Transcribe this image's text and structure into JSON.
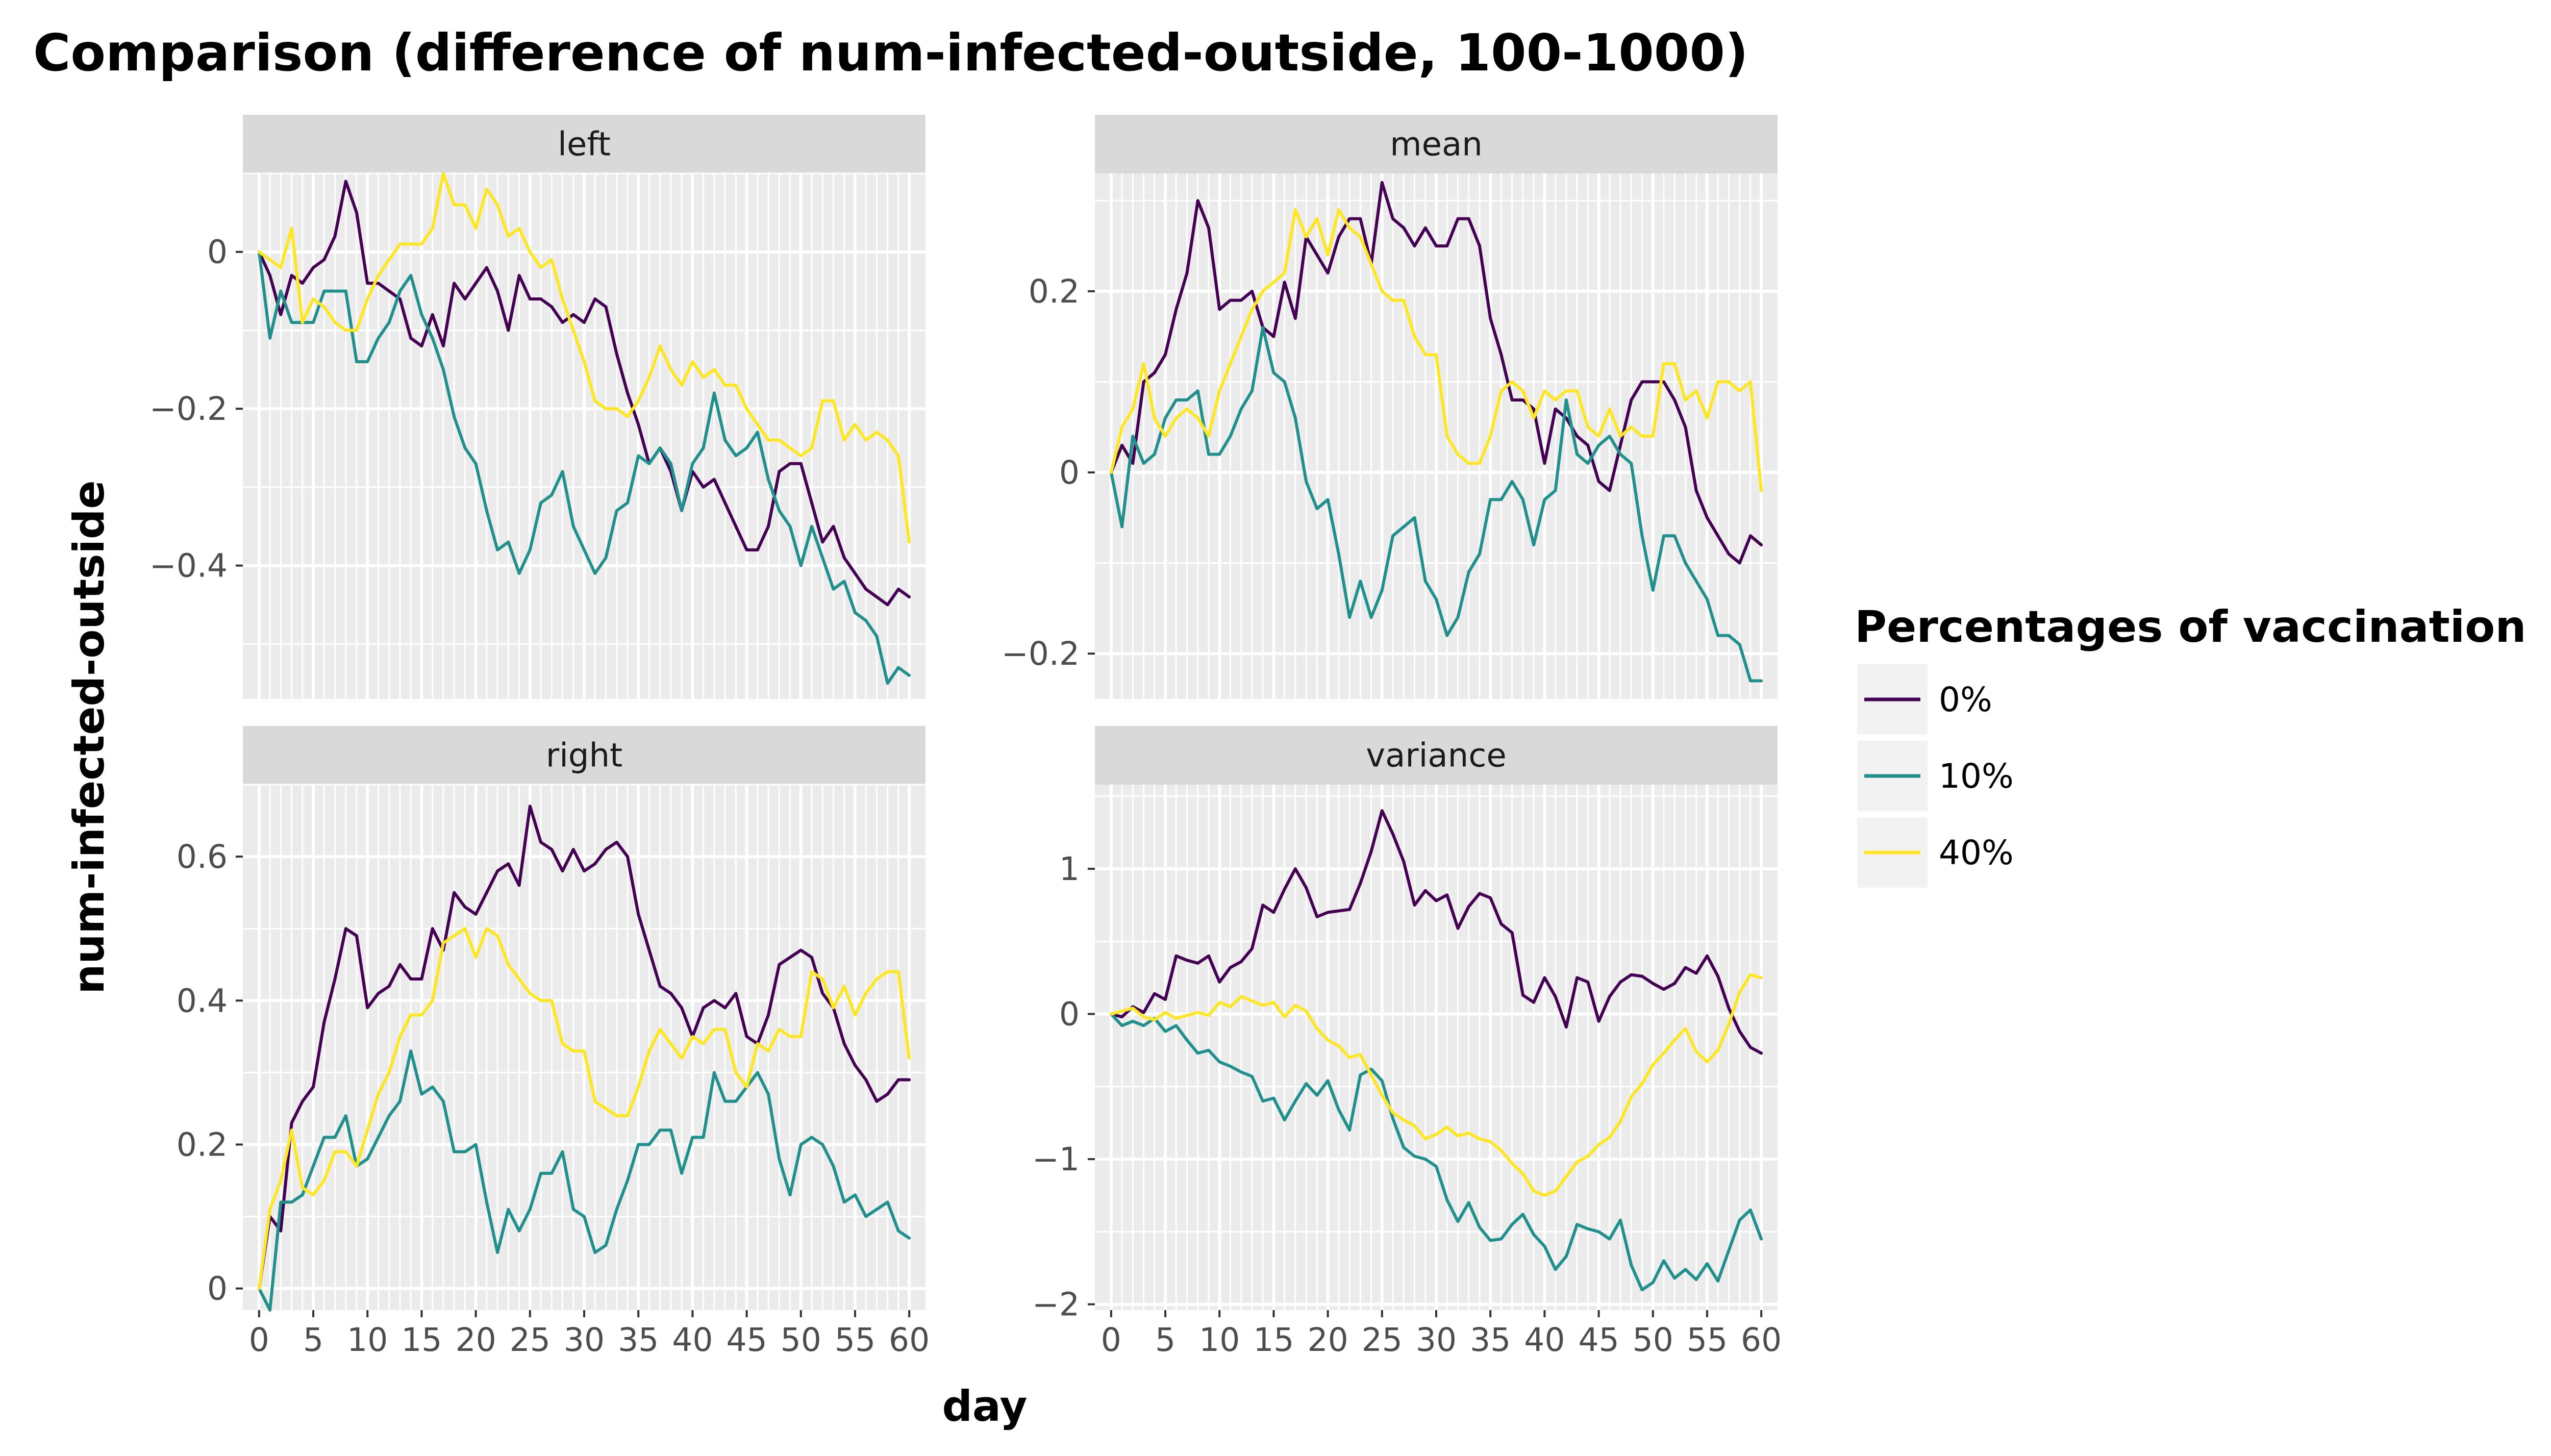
{
  "chart_data": {
    "type": "line",
    "title": "Comparison (difference of num-infected-outside, 100-1000)",
    "xlabel": "day",
    "ylabel": "num-infected-outside",
    "legend": {
      "title": "Percentages of vaccination",
      "placement": "right",
      "entries": [
        {
          "label": "0%",
          "color": "#440154"
        },
        {
          "label": "10%",
          "color": "#21908C"
        },
        {
          "label": "40%",
          "color": "#FDE725"
        }
      ]
    },
    "x_ticks": [
      "0",
      "5",
      "10",
      "15",
      "20",
      "25",
      "30",
      "35",
      "40",
      "45",
      "50",
      "55",
      "60"
    ],
    "xlim": [
      -1.5,
      61.5
    ],
    "grid": true,
    "series_names": [
      "0%",
      "10%",
      "40%"
    ],
    "panels": [
      {
        "strip": "left",
        "ylim": [
          -0.57,
          0.1
        ],
        "y_ticks": [
          {
            "value": 0,
            "label": "0"
          },
          {
            "value": -0.2,
            "label": "−0.2"
          },
          {
            "value": -0.4,
            "label": "−0.4"
          }
        ],
        "series": [
          {
            "values": [
              0,
              -0.03,
              -0.08,
              -0.03,
              -0.04,
              -0.02,
              -0.01,
              0.02,
              0.09,
              0.05,
              -0.04,
              -0.04,
              -0.05,
              -0.06,
              -0.11,
              -0.12,
              -0.08,
              -0.12,
              -0.04,
              -0.06,
              -0.04,
              -0.02,
              -0.05,
              -0.1,
              -0.03,
              -0.06,
              -0.06,
              -0.07,
              -0.09,
              -0.08,
              -0.09,
              -0.06,
              -0.07,
              -0.13,
              -0.18,
              -0.22,
              -0.27,
              -0.25,
              -0.28,
              -0.33,
              -0.28,
              -0.3,
              -0.29,
              -0.32,
              -0.35,
              -0.38,
              -0.38,
              -0.35,
              -0.28,
              -0.27,
              -0.27,
              -0.32,
              -0.37,
              -0.35,
              -0.39,
              -0.41,
              -0.43,
              -0.44,
              -0.45,
              -0.43,
              -0.44
            ]
          },
          {
            "values": [
              0,
              -0.11,
              -0.05,
              -0.09,
              -0.09,
              -0.09,
              -0.05,
              -0.05,
              -0.05,
              -0.14,
              -0.14,
              -0.11,
              -0.09,
              -0.05,
              -0.03,
              -0.08,
              -0.11,
              -0.15,
              -0.21,
              -0.25,
              -0.27,
              -0.33,
              -0.38,
              -0.37,
              -0.41,
              -0.38,
              -0.32,
              -0.31,
              -0.28,
              -0.35,
              -0.38,
              -0.41,
              -0.39,
              -0.33,
              -0.32,
              -0.26,
              -0.27,
              -0.25,
              -0.27,
              -0.33,
              -0.27,
              -0.25,
              -0.18,
              -0.24,
              -0.26,
              -0.25,
              -0.23,
              -0.29,
              -0.33,
              -0.35,
              -0.4,
              -0.35,
              -0.39,
              -0.43,
              -0.42,
              -0.46,
              -0.47,
              -0.49,
              -0.55,
              -0.53,
              -0.54
            ]
          },
          {
            "values": [
              0,
              -0.01,
              -0.02,
              0.03,
              -0.09,
              -0.06,
              -0.07,
              -0.09,
              -0.1,
              -0.1,
              -0.06,
              -0.03,
              -0.01,
              0.01,
              0.01,
              0.01,
              0.03,
              0.1,
              0.06,
              0.06,
              0.03,
              0.08,
              0.06,
              0.02,
              0.03,
              0,
              -0.02,
              -0.01,
              -0.06,
              -0.1,
              -0.14,
              -0.19,
              -0.2,
              -0.2,
              -0.21,
              -0.19,
              -0.16,
              -0.12,
              -0.15,
              -0.17,
              -0.14,
              -0.16,
              -0.15,
              -0.17,
              -0.17,
              -0.2,
              -0.22,
              -0.24,
              -0.24,
              -0.25,
              -0.26,
              -0.25,
              -0.19,
              -0.19,
              -0.24,
              -0.22,
              -0.24,
              -0.23,
              -0.24,
              -0.26,
              -0.37
            ]
          }
        ]
      },
      {
        "strip": "mean",
        "ylim": [
          -0.25,
          0.33
        ],
        "y_ticks": [
          {
            "value": 0.2,
            "label": "0.2"
          },
          {
            "value": 0,
            "label": "0"
          },
          {
            "value": -0.2,
            "label": "−0.2"
          }
        ],
        "series": [
          {
            "values": [
              0,
              0.03,
              0.01,
              0.1,
              0.11,
              0.13,
              0.18,
              0.22,
              0.3,
              0.27,
              0.18,
              0.19,
              0.19,
              0.2,
              0.16,
              0.15,
              0.21,
              0.17,
              0.26,
              0.24,
              0.22,
              0.26,
              0.28,
              0.28,
              0.23,
              0.32,
              0.28,
              0.27,
              0.25,
              0.27,
              0.25,
              0.25,
              0.28,
              0.28,
              0.25,
              0.17,
              0.13,
              0.08,
              0.08,
              0.07,
              0.01,
              0.07,
              0.06,
              0.04,
              0.03,
              -0.01,
              -0.02,
              0.03,
              0.08,
              0.1,
              0.1,
              0.1,
              0.08,
              0.05,
              -0.02,
              -0.05,
              -0.07,
              -0.09,
              -0.1,
              -0.07,
              -0.08
            ]
          },
          {
            "values": [
              0,
              -0.06,
              0.04,
              0.01,
              0.02,
              0.06,
              0.08,
              0.08,
              0.09,
              0.02,
              0.02,
              0.04,
              0.07,
              0.09,
              0.16,
              0.11,
              0.1,
              0.06,
              -0.01,
              -0.04,
              -0.03,
              -0.09,
              -0.16,
              -0.12,
              -0.16,
              -0.13,
              -0.07,
              -0.06,
              -0.05,
              -0.12,
              -0.14,
              -0.18,
              -0.16,
              -0.11,
              -0.09,
              -0.03,
              -0.03,
              -0.01,
              -0.03,
              -0.08,
              -0.03,
              -0.02,
              0.08,
              0.02,
              0.01,
              0.03,
              0.04,
              0.02,
              0.01,
              -0.07,
              -0.13,
              -0.07,
              -0.07,
              -0.1,
              -0.12,
              -0.14,
              -0.18,
              -0.18,
              -0.19,
              -0.23,
              -0.23
            ]
          },
          {
            "values": [
              0,
              0.05,
              0.07,
              0.12,
              0.06,
              0.04,
              0.06,
              0.07,
              0.06,
              0.04,
              0.09,
              0.12,
              0.15,
              0.18,
              0.2,
              0.21,
              0.22,
              0.29,
              0.26,
              0.28,
              0.24,
              0.29,
              0.27,
              0.26,
              0.23,
              0.2,
              0.19,
              0.19,
              0.15,
              0.13,
              0.13,
              0.04,
              0.02,
              0.01,
              0.01,
              0.04,
              0.09,
              0.1,
              0.09,
              0.06,
              0.09,
              0.08,
              0.09,
              0.09,
              0.05,
              0.04,
              0.07,
              0.04,
              0.05,
              0.04,
              0.04,
              0.12,
              0.12,
              0.08,
              0.09,
              0.06,
              0.1,
              0.1,
              0.09,
              0.1,
              -0.02
            ]
          }
        ]
      },
      {
        "strip": "right",
        "ylim": [
          -0.03,
          0.7
        ],
        "y_ticks": [
          {
            "value": 0.6,
            "label": "0.6"
          },
          {
            "value": 0.4,
            "label": "0.4"
          },
          {
            "value": 0.2,
            "label": "0.2"
          },
          {
            "value": 0,
            "label": "0"
          }
        ],
        "series": [
          {
            "values": [
              0,
              0.1,
              0.08,
              0.23,
              0.26,
              0.28,
              0.37,
              0.43,
              0.5,
              0.49,
              0.39,
              0.41,
              0.42,
              0.45,
              0.43,
              0.43,
              0.5,
              0.47,
              0.55,
              0.53,
              0.52,
              0.55,
              0.58,
              0.59,
              0.56,
              0.67,
              0.62,
              0.61,
              0.58,
              0.61,
              0.58,
              0.59,
              0.61,
              0.62,
              0.6,
              0.52,
              0.47,
              0.42,
              0.41,
              0.39,
              0.35,
              0.39,
              0.4,
              0.39,
              0.41,
              0.35,
              0.34,
              0.38,
              0.45,
              0.46,
              0.47,
              0.46,
              0.41,
              0.39,
              0.34,
              0.31,
              0.29,
              0.26,
              0.27,
              0.29,
              0.29
            ]
          },
          {
            "values": [
              0,
              -0.03,
              0.12,
              0.12,
              0.13,
              0.17,
              0.21,
              0.21,
              0.24,
              0.17,
              0.18,
              0.21,
              0.24,
              0.26,
              0.33,
              0.27,
              0.28,
              0.26,
              0.19,
              0.19,
              0.2,
              0.12,
              0.05,
              0.11,
              0.08,
              0.11,
              0.16,
              0.16,
              0.19,
              0.11,
              0.1,
              0.05,
              0.06,
              0.11,
              0.15,
              0.2,
              0.2,
              0.22,
              0.22,
              0.16,
              0.21,
              0.21,
              0.3,
              0.26,
              0.26,
              0.28,
              0.3,
              0.27,
              0.18,
              0.13,
              0.2,
              0.21,
              0.2,
              0.17,
              0.12,
              0.13,
              0.1,
              0.11,
              0.12,
              0.08,
              0.07
            ]
          },
          {
            "values": [
              0,
              0.11,
              0.15,
              0.22,
              0.14,
              0.13,
              0.15,
              0.19,
              0.19,
              0.17,
              0.22,
              0.27,
              0.3,
              0.35,
              0.38,
              0.38,
              0.4,
              0.48,
              0.49,
              0.5,
              0.46,
              0.5,
              0.49,
              0.45,
              0.43,
              0.41,
              0.4,
              0.4,
              0.34,
              0.33,
              0.33,
              0.26,
              0.25,
              0.24,
              0.24,
              0.28,
              0.33,
              0.36,
              0.34,
              0.32,
              0.35,
              0.34,
              0.36,
              0.36,
              0.3,
              0.28,
              0.34,
              0.33,
              0.36,
              0.35,
              0.35,
              0.44,
              0.43,
              0.39,
              0.42,
              0.38,
              0.41,
              0.43,
              0.44,
              0.44,
              0.32
            ]
          }
        ]
      },
      {
        "strip": "variance",
        "ylim": [
          -2.04,
          1.58
        ],
        "y_ticks": [
          {
            "value": 1,
            "label": "1"
          },
          {
            "value": 0,
            "label": "0"
          },
          {
            "value": -1,
            "label": "−1"
          },
          {
            "value": -2,
            "label": "−2"
          }
        ],
        "series": [
          {
            "values": [
              0,
              -0.02,
              0.05,
              0.01,
              0.14,
              0.1,
              0.4,
              0.37,
              0.35,
              0.4,
              0.22,
              0.32,
              0.36,
              0.45,
              0.75,
              0.7,
              0.86,
              1.0,
              0.87,
              0.67,
              0.7,
              0.71,
              0.72,
              0.9,
              1.12,
              1.4,
              1.24,
              1.05,
              0.75,
              0.85,
              0.78,
              0.82,
              0.59,
              0.74,
              0.83,
              0.8,
              0.62,
              0.56,
              0.13,
              0.08,
              0.25,
              0.12,
              -0.09,
              0.25,
              0.22,
              -0.05,
              0.12,
              0.22,
              0.27,
              0.26,
              0.21,
              0.17,
              0.21,
              0.32,
              0.28,
              0.4,
              0.26,
              0.04,
              -0.12,
              -0.23,
              -0.27
            ]
          },
          {
            "values": [
              0,
              -0.08,
              -0.05,
              -0.08,
              -0.03,
              -0.12,
              -0.08,
              -0.18,
              -0.27,
              -0.25,
              -0.33,
              -0.36,
              -0.4,
              -0.43,
              -0.6,
              -0.58,
              -0.73,
              -0.6,
              -0.48,
              -0.56,
              -0.46,
              -0.66,
              -0.8,
              -0.42,
              -0.38,
              -0.46,
              -0.72,
              -0.92,
              -0.98,
              -1.0,
              -1.05,
              -1.28,
              -1.43,
              -1.3,
              -1.47,
              -1.56,
              -1.55,
              -1.45,
              -1.38,
              -1.52,
              -1.6,
              -1.76,
              -1.67,
              -1.45,
              -1.48,
              -1.5,
              -1.55,
              -1.42,
              -1.73,
              -1.9,
              -1.85,
              -1.7,
              -1.82,
              -1.76,
              -1.83,
              -1.72,
              -1.84,
              -1.63,
              -1.42,
              -1.35,
              -1.55
            ]
          },
          {
            "values": [
              0,
              0.02,
              0.04,
              -0.02,
              -0.04,
              0.01,
              -0.03,
              -0.01,
              0.01,
              -0.01,
              0.08,
              0.05,
              0.12,
              0.09,
              0.06,
              0.08,
              -0.02,
              0.06,
              0.02,
              -0.1,
              -0.18,
              -0.22,
              -0.3,
              -0.28,
              -0.42,
              -0.56,
              -0.68,
              -0.73,
              -0.77,
              -0.86,
              -0.83,
              -0.78,
              -0.84,
              -0.82,
              -0.86,
              -0.88,
              -0.94,
              -1.03,
              -1.1,
              -1.22,
              -1.25,
              -1.22,
              -1.12,
              -1.02,
              -0.98,
              -0.9,
              -0.85,
              -0.74,
              -0.57,
              -0.48,
              -0.35,
              -0.27,
              -0.18,
              -0.1,
              -0.26,
              -0.33,
              -0.25,
              -0.07,
              0.15,
              0.27,
              0.25
            ]
          }
        ]
      }
    ]
  }
}
